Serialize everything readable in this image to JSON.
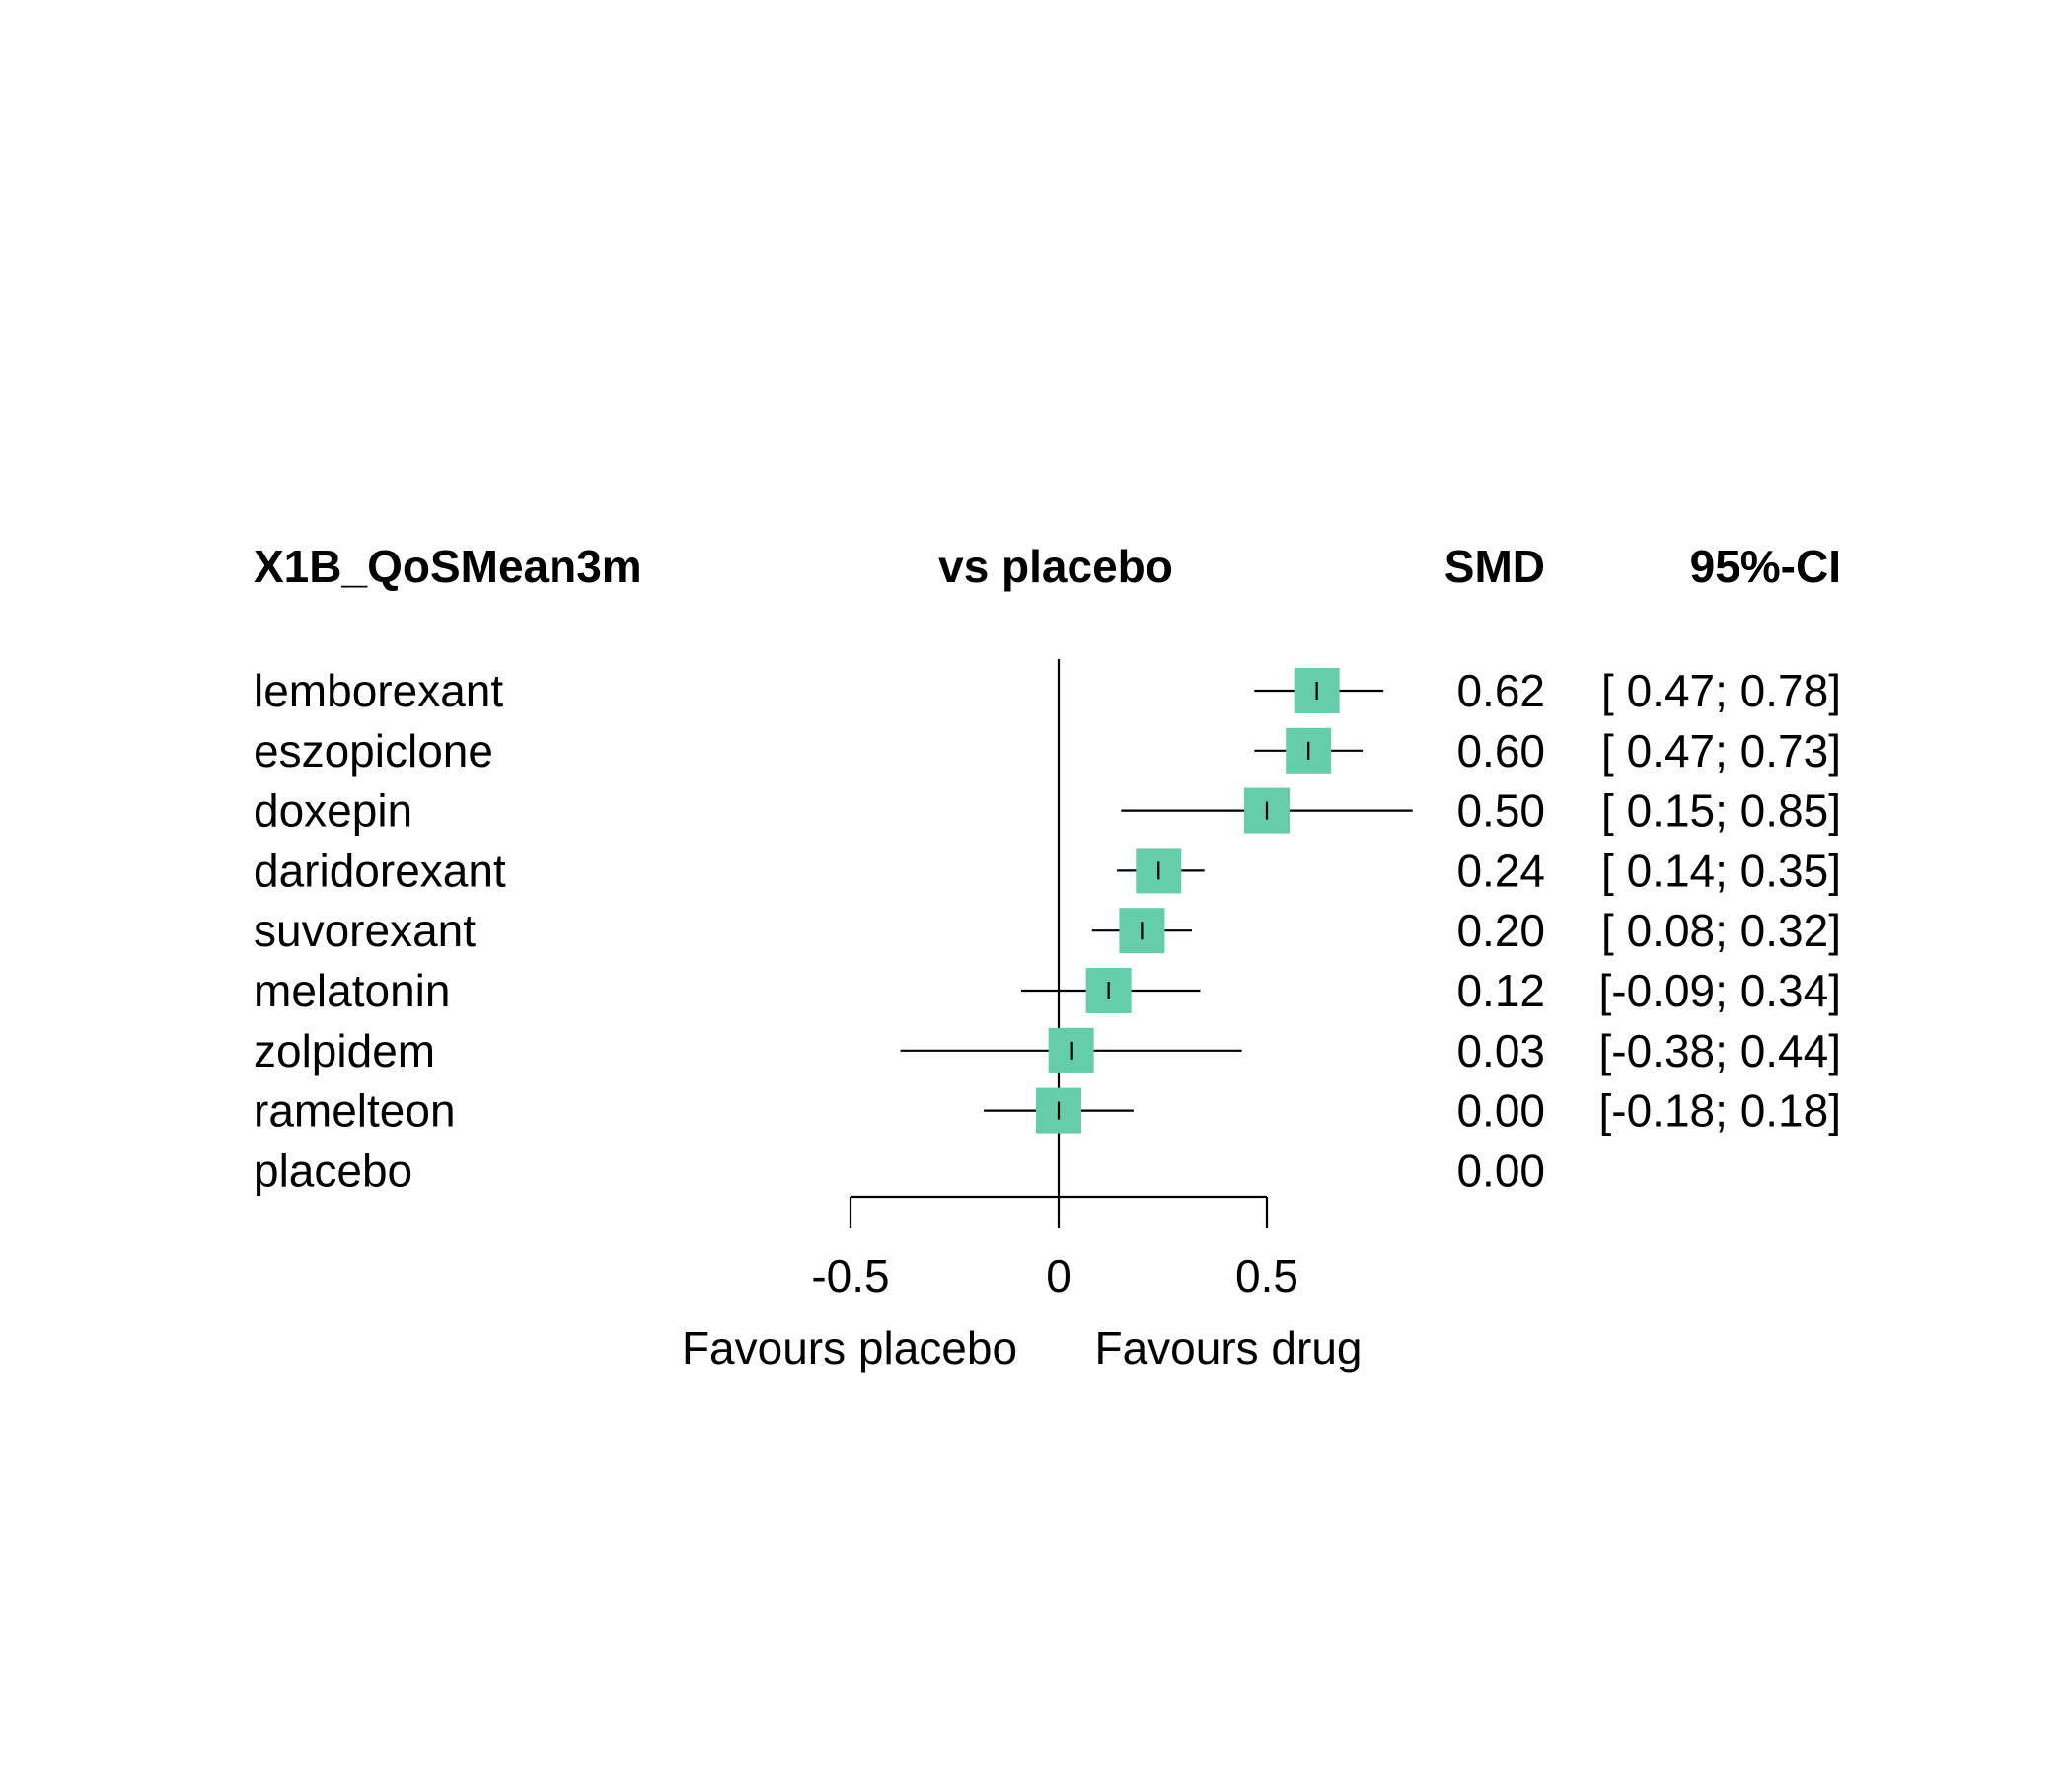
{
  "chart_data": {
    "type": "forest",
    "headers": {
      "outcome": "X1B_QoSMean3m",
      "comparison": "vs placebo",
      "effect": "SMD",
      "ci": "95%-CI"
    },
    "rows": [
      {
        "label": "lemborexant",
        "smd": 0.62,
        "lower": 0.47,
        "upper": 0.78,
        "smd_text": "0.62",
        "ci_text": "[ 0.47; 0.78]"
      },
      {
        "label": "eszopiclone",
        "smd": 0.6,
        "lower": 0.47,
        "upper": 0.73,
        "smd_text": "0.60",
        "ci_text": "[ 0.47; 0.73]"
      },
      {
        "label": "doxepin",
        "smd": 0.5,
        "lower": 0.15,
        "upper": 0.85,
        "smd_text": "0.50",
        "ci_text": "[ 0.15; 0.85]"
      },
      {
        "label": "daridorexant",
        "smd": 0.24,
        "lower": 0.14,
        "upper": 0.35,
        "smd_text": "0.24",
        "ci_text": "[ 0.14; 0.35]"
      },
      {
        "label": "suvorexant",
        "smd": 0.2,
        "lower": 0.08,
        "upper": 0.32,
        "smd_text": "0.20",
        "ci_text": "[ 0.08; 0.32]"
      },
      {
        "label": "melatonin",
        "smd": 0.12,
        "lower": -0.09,
        "upper": 0.34,
        "smd_text": "0.12",
        "ci_text": "[-0.09; 0.34]"
      },
      {
        "label": "zolpidem",
        "smd": 0.03,
        "lower": -0.38,
        "upper": 0.44,
        "smd_text": "0.03",
        "ci_text": "[-0.38; 0.44]"
      },
      {
        "label": "ramelteon",
        "smd": 0.0,
        "lower": -0.18,
        "upper": 0.18,
        "smd_text": "0.00",
        "ci_text": "[-0.18; 0.18]"
      },
      {
        "label": "placebo",
        "smd": 0.0,
        "lower": null,
        "upper": null,
        "smd_text": "0.00",
        "ci_text": ""
      }
    ],
    "x_axis": {
      "ticks": [
        -0.5,
        0,
        0.5
      ],
      "tick_labels": [
        "-0.5",
        "0",
        "0.5"
      ],
      "xlim": [
        -0.5,
        0.5
      ],
      "label_left": "Favours placebo",
      "label_right": "Favours drug"
    },
    "reference_line": 0,
    "box_color": "#66CDAA",
    "grid": false
  }
}
